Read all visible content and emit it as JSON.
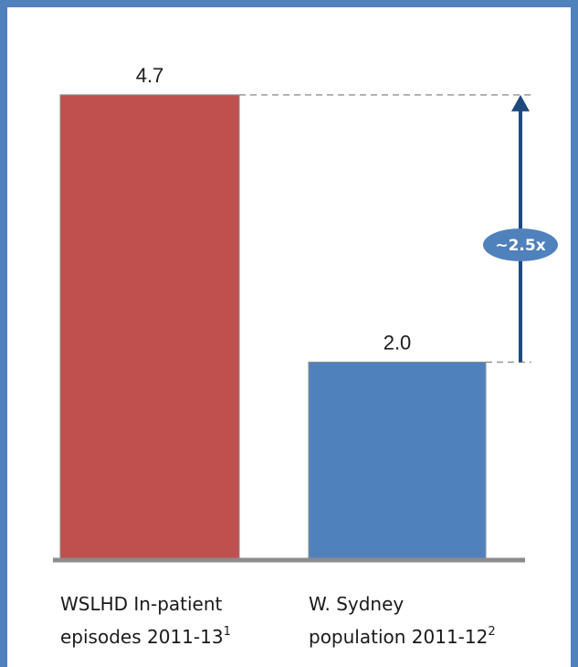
{
  "chart_data": {
    "type": "bar",
    "title": "",
    "xlabel": "",
    "ylabel": "",
    "ylim": [
      0,
      5.4
    ],
    "grid": false,
    "categories": [
      {
        "lines": [
          {
            "text": "WSLHD In-patient",
            "sup": ""
          },
          {
            "text": "episodes 2011-13",
            "sup": "1"
          }
        ]
      },
      {
        "lines": [
          {
            "text": "W. Sydney",
            "sup": ""
          },
          {
            "text": "population 2011-12",
            "sup": "2"
          }
        ]
      }
    ],
    "values": [
      4.7,
      2.0
    ],
    "value_labels": [
      "4.7",
      "2.0"
    ],
    "bar_colors": [
      "#c0504d",
      "#4f81bd"
    ],
    "annotation": {
      "text": "~2.5x",
      "from_value": 2.0,
      "to_value": 4.7,
      "arrow_color": "#1f497d",
      "badge_color": "#4f81bd"
    }
  },
  "colors": {
    "frame_border": "#4f81bd",
    "axis_line": "#8c8c8c",
    "guide_line": "#999999"
  }
}
